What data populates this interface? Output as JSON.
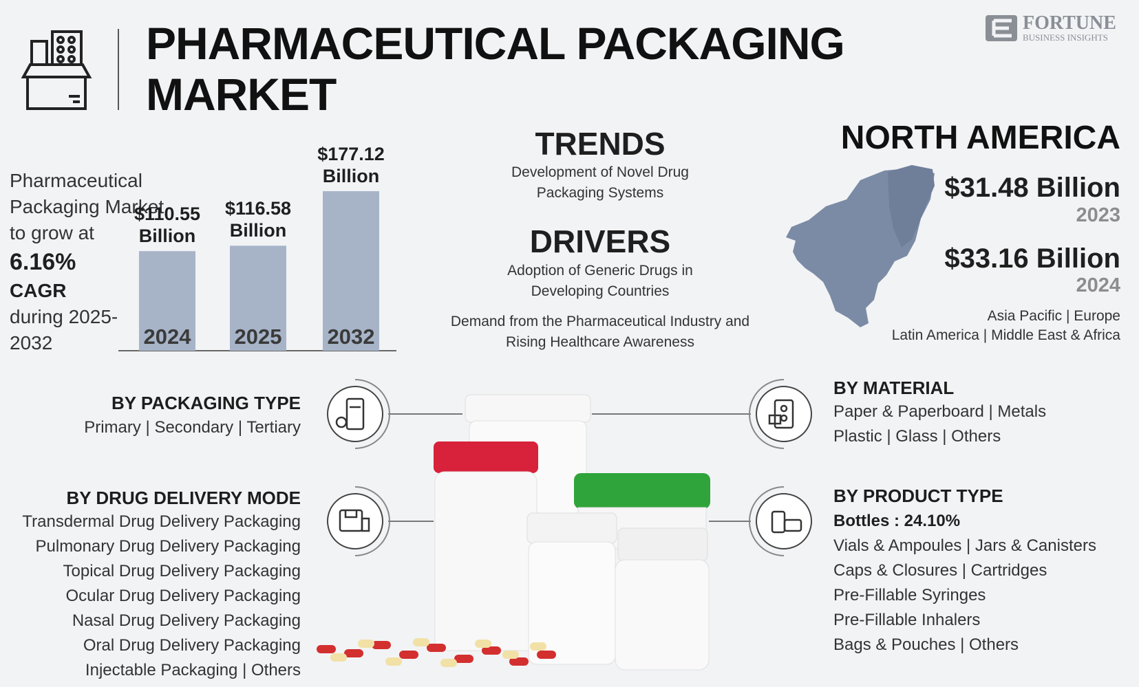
{
  "header": {
    "title": "PHARMACEUTICAL PACKAGING MARKET",
    "brand": "FORTUNE",
    "brand_sub": "BUSINESS INSIGHTS"
  },
  "growth": {
    "intro": "Pharmaceutical Packaging Market to grow at",
    "rate": "6.16%",
    "label": "CAGR",
    "period": "during 2025-2032"
  },
  "chart_data": {
    "type": "bar",
    "categories": [
      "2024",
      "2025",
      "2032"
    ],
    "values": [
      110.55,
      116.58,
      177.12
    ],
    "value_labels": [
      "$110.55 Billion",
      "$116.58 Billion",
      "$177.12 Billion"
    ],
    "color": "#a7b4c8"
  },
  "trends": {
    "title": "TRENDS",
    "text": "Development of Novel Drug Packaging Systems"
  },
  "drivers": {
    "title": "DRIVERS",
    "items": [
      "Adoption of Generic Drugs in Developing Countries",
      "Demand from the Pharmaceutical Industry and Rising Healthcare Awareness"
    ]
  },
  "region": {
    "title": "NORTH AMERICA",
    "values": [
      {
        "value": "$31.48 Billion",
        "year": "2023"
      },
      {
        "value": "$33.16 Billion",
        "year": "2024"
      }
    ],
    "others": [
      "Asia Pacific  |  Europe",
      "Latin America  |  Middle East & Africa"
    ]
  },
  "segments": {
    "packaging_type": {
      "title": "BY PACKAGING TYPE",
      "items": [
        "Primary  |  Secondary  |  Tertiary"
      ]
    },
    "delivery_mode": {
      "title": "BY DRUG DELIVERY MODE",
      "items": [
        "Transdermal Drug Delivery Packaging",
        "Pulmonary Drug Delivery Packaging",
        "Topical Drug Delivery Packaging",
        "Ocular Drug Delivery Packaging",
        "Nasal Drug Delivery Packaging",
        "Oral Drug Delivery Packaging",
        "Injectable Packaging  |  Others"
      ]
    },
    "material": {
      "title": "BY MATERIAL",
      "items": [
        "Paper & Paperboard  |  Metals",
        "Plastic  |  Glass  |  Others"
      ]
    },
    "product_type": {
      "title": "BY PRODUCT TYPE",
      "highlight": "Bottles : 24.10%",
      "items": [
        "Vials & Ampoules  |  Jars & Canisters",
        "Caps & Closures  |  Cartridges",
        "Pre-Fillable Syringes",
        "Pre-Fillable Inhalers",
        "Bags & Pouches  |  Others"
      ]
    }
  }
}
